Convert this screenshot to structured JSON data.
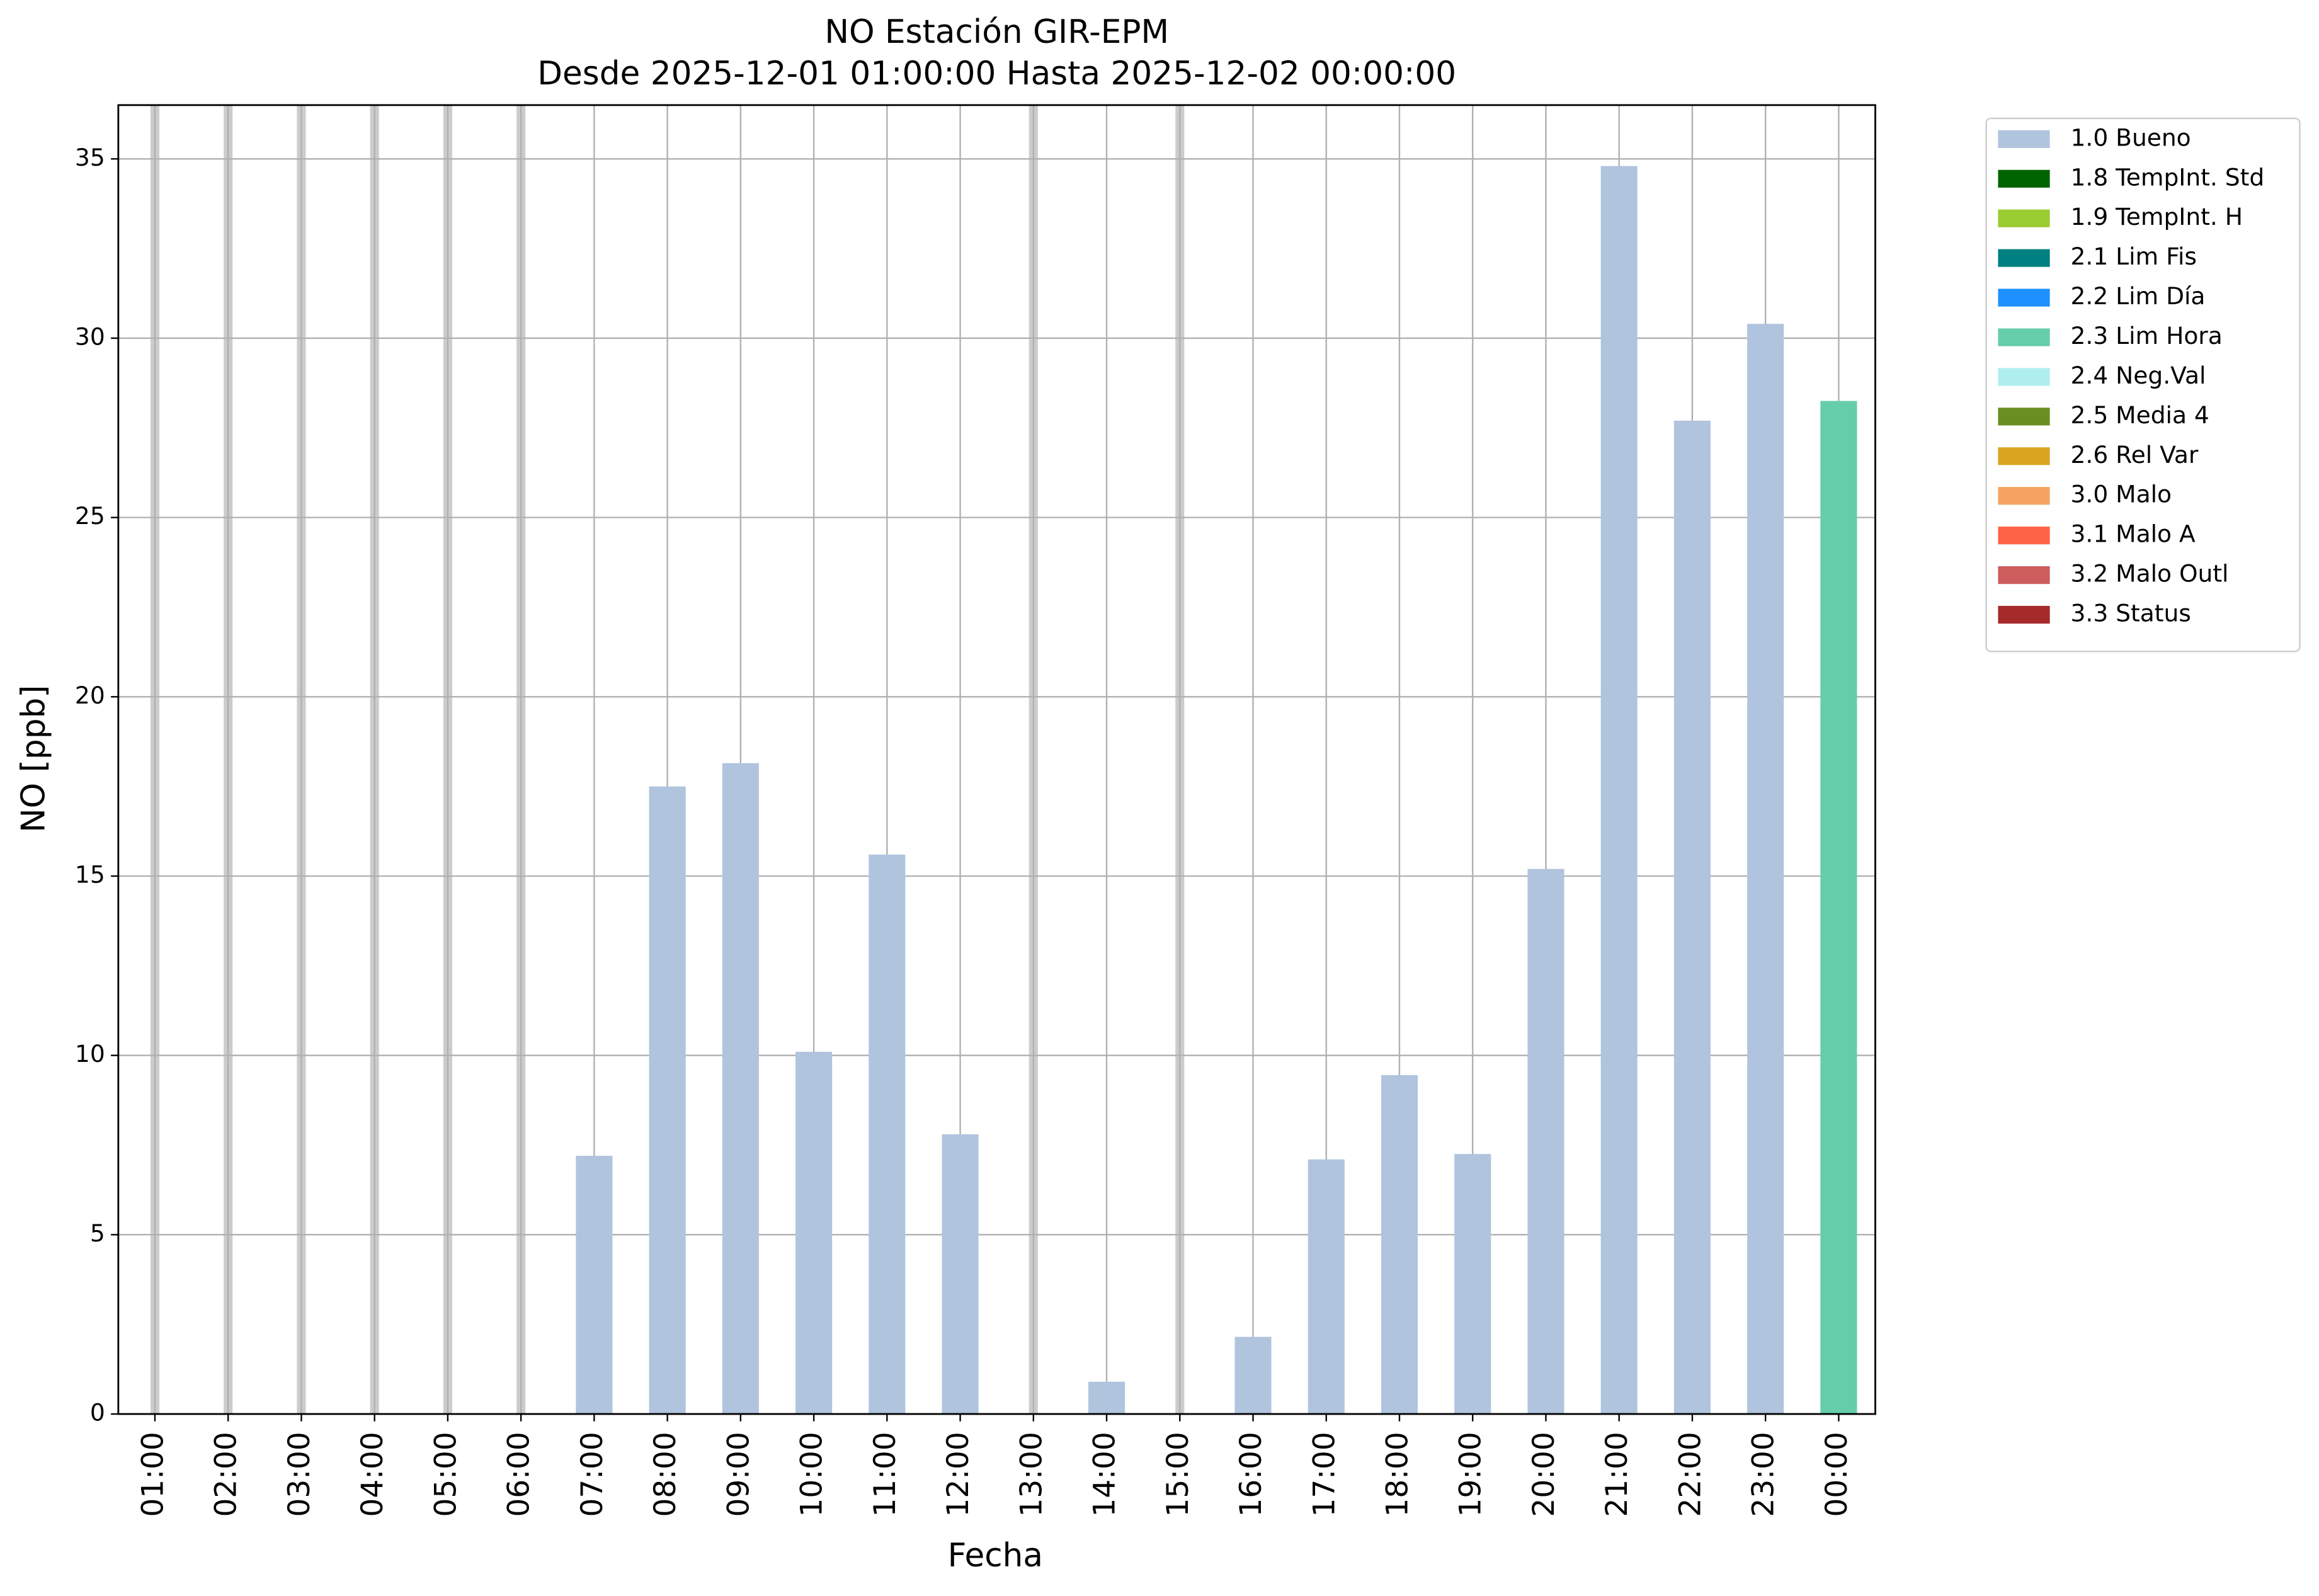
{
  "chart_data": {
    "type": "bar",
    "title": "NO Estación GIR-EPM",
    "subtitle": "Desde 2025-12-01 01:00:00 Hasta 2025-12-02 00:00:00",
    "x_label": "Fecha",
    "y_label": "NO [ppb]",
    "categories": [
      "01:00",
      "02:00",
      "03:00",
      "04:00",
      "05:00",
      "06:00",
      "07:00",
      "08:00",
      "09:00",
      "10:00",
      "11:00",
      "12:00",
      "13:00",
      "14:00",
      "15:00",
      "16:00",
      "17:00",
      "18:00",
      "19:00",
      "20:00",
      "21:00",
      "22:00",
      "23:00",
      "00:00"
    ],
    "series": [
      {
        "name": "1.0 Bueno",
        "color": "#b0c4de",
        "values": [
          null,
          null,
          null,
          null,
          null,
          null,
          7.2,
          17.5,
          18.15,
          10.1,
          15.6,
          7.8,
          null,
          0.9,
          null,
          2.15,
          7.1,
          9.45,
          7.25,
          15.2,
          34.8,
          27.7,
          30.4,
          null
        ]
      },
      {
        "name": "1.8 TempInt. Std",
        "color": "#006400",
        "values": [
          null,
          null,
          null,
          null,
          null,
          null,
          null,
          null,
          null,
          null,
          null,
          null,
          null,
          null,
          null,
          null,
          null,
          null,
          null,
          null,
          null,
          null,
          null,
          null
        ]
      },
      {
        "name": "1.9 TempInt. H",
        "color": "#9acd32",
        "values": [
          null,
          null,
          null,
          null,
          null,
          null,
          null,
          null,
          null,
          null,
          null,
          null,
          null,
          null,
          null,
          null,
          null,
          null,
          null,
          null,
          null,
          null,
          null,
          null
        ]
      },
      {
        "name": "2.1 Lim Fis",
        "color": "#008080",
        "values": [
          null,
          null,
          null,
          null,
          null,
          null,
          null,
          null,
          null,
          null,
          null,
          null,
          null,
          null,
          null,
          null,
          null,
          null,
          null,
          null,
          null,
          null,
          null,
          null
        ]
      },
      {
        "name": "2.2 Lim Día",
        "color": "#1e90ff",
        "values": [
          null,
          null,
          null,
          null,
          null,
          null,
          null,
          null,
          null,
          null,
          null,
          null,
          null,
          null,
          null,
          null,
          null,
          null,
          null,
          null,
          null,
          null,
          null,
          null
        ]
      },
      {
        "name": "2.3 Lim Hora",
        "color": "#66cdaa",
        "values": [
          null,
          null,
          null,
          null,
          null,
          null,
          null,
          null,
          null,
          null,
          null,
          null,
          null,
          null,
          null,
          null,
          null,
          null,
          null,
          null,
          null,
          null,
          null,
          28.25
        ]
      },
      {
        "name": "2.4 Neg.Val",
        "color": "#afeeee",
        "values": [
          null,
          null,
          null,
          null,
          null,
          null,
          null,
          null,
          null,
          null,
          null,
          null,
          null,
          null,
          null,
          null,
          null,
          null,
          null,
          null,
          null,
          null,
          null,
          null
        ]
      },
      {
        "name": "2.5 Media 4",
        "color": "#6b8e23",
        "values": [
          null,
          null,
          null,
          null,
          null,
          null,
          null,
          null,
          null,
          null,
          null,
          null,
          null,
          null,
          null,
          null,
          null,
          null,
          null,
          null,
          null,
          null,
          null,
          null
        ]
      },
      {
        "name": "2.6 Rel Var",
        "color": "#daa520",
        "values": [
          null,
          null,
          null,
          null,
          null,
          null,
          null,
          null,
          null,
          null,
          null,
          null,
          null,
          null,
          null,
          null,
          null,
          null,
          null,
          null,
          null,
          null,
          null,
          null
        ]
      },
      {
        "name": "3.0 Malo",
        "color": "#f4a460",
        "values": [
          null,
          null,
          null,
          null,
          null,
          null,
          null,
          null,
          null,
          null,
          null,
          null,
          null,
          null,
          null,
          null,
          null,
          null,
          null,
          null,
          null,
          null,
          null,
          null
        ]
      },
      {
        "name": "3.1 Malo A",
        "color": "#ff6347",
        "values": [
          null,
          null,
          null,
          null,
          null,
          null,
          null,
          null,
          null,
          null,
          null,
          null,
          null,
          null,
          null,
          null,
          null,
          null,
          null,
          null,
          null,
          null,
          null,
          null
        ]
      },
      {
        "name": "3.2 Malo Outl",
        "color": "#cd5c5c",
        "values": [
          null,
          null,
          null,
          null,
          null,
          null,
          null,
          null,
          null,
          null,
          null,
          null,
          null,
          null,
          null,
          null,
          null,
          null,
          null,
          null,
          null,
          null,
          null,
          null
        ]
      },
      {
        "name": "3.3 Status",
        "color": "#a52a2a",
        "values": [
          null,
          null,
          null,
          null,
          null,
          null,
          null,
          null,
          null,
          null,
          null,
          null,
          null,
          null,
          null,
          null,
          null,
          null,
          null,
          null,
          null,
          null,
          null,
          null
        ]
      }
    ],
    "ylim": [
      0,
      36.5
    ],
    "yticks": [
      0,
      5,
      10,
      15,
      20,
      25,
      30,
      35
    ],
    "grid": true,
    "legend": "outside-right"
  }
}
